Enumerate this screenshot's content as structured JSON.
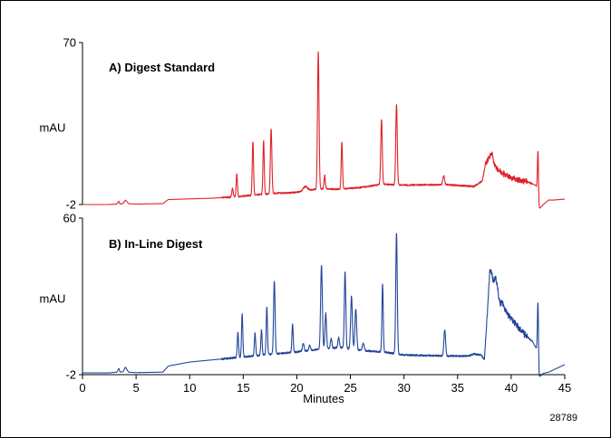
{
  "chart_data": [
    {
      "type": "line",
      "title": "A) Digest Standard",
      "ylabel": "mAU",
      "xlim": [
        0,
        45
      ],
      "ylim": [
        -2,
        70
      ],
      "ytick_labels": [
        "-2",
        "70"
      ],
      "grid": false,
      "line_color": "#e0202a",
      "baseline": {
        "x": [
          0,
          2.5,
          3.2,
          3.4,
          3.5,
          3.8,
          4.0,
          4.3,
          5.0,
          7.5,
          8.0,
          12,
          14,
          16,
          18,
          20,
          22,
          24,
          26,
          28,
          30,
          32,
          34,
          36,
          36.5,
          37.3,
          37.6,
          38.0,
          38.6,
          39.5,
          40.5,
          41.5,
          42.3,
          42.5,
          42.6,
          43.0,
          43.5,
          44.0,
          45.0
        ],
        "y": [
          -2,
          -2,
          -1.8,
          -0.5,
          -1.8,
          -1.5,
          0,
          -1.6,
          -1.8,
          -1.6,
          0.2,
          0.8,
          1.3,
          2.2,
          3.0,
          3.4,
          5.0,
          4.8,
          5.6,
          7.0,
          6.6,
          6.8,
          6.8,
          6.2,
          6.0,
          8.4,
          16.0,
          19.5,
          14.0,
          11.0,
          9.0,
          8.2,
          6.5,
          4.0,
          -4.0,
          -2.0,
          0,
          0,
          0.4
        ]
      },
      "peaks": [
        {
          "x": 14.0,
          "height": 4,
          "width": 0.06
        },
        {
          "x": 14.4,
          "height": 10,
          "width": 0.06
        },
        {
          "x": 15.9,
          "height": 24,
          "width": 0.06
        },
        {
          "x": 16.9,
          "height": 24,
          "width": 0.06
        },
        {
          "x": 17.6,
          "height": 29,
          "width": 0.07
        },
        {
          "x": 20.8,
          "height": 2,
          "width": 0.2
        },
        {
          "x": 22.0,
          "height": 61,
          "width": 0.07
        },
        {
          "x": 22.6,
          "height": 6,
          "width": 0.06
        },
        {
          "x": 24.2,
          "height": 21,
          "width": 0.06
        },
        {
          "x": 27.9,
          "height": 29,
          "width": 0.07
        },
        {
          "x": 29.3,
          "height": 36,
          "width": 0.07
        },
        {
          "x": 33.7,
          "height": 4,
          "width": 0.08
        },
        {
          "x": 38.2,
          "height": 3,
          "width": 0.1
        },
        {
          "x": 42.5,
          "height": 18,
          "width": 0.05
        }
      ]
    },
    {
      "type": "line",
      "title": "B) In-Line Digest",
      "ylabel": "mAU",
      "xlabel": "Minutes",
      "xlim": [
        0,
        45
      ],
      "ylim": [
        -2,
        60
      ],
      "x_ticks": [
        0,
        5,
        10,
        15,
        20,
        25,
        30,
        35,
        40,
        45
      ],
      "ytick_labels": [
        "-2",
        "60"
      ],
      "grid": false,
      "line_color": "#22449a",
      "baseline": {
        "x": [
          0,
          2.5,
          3.2,
          3.4,
          3.5,
          3.8,
          4.0,
          4.3,
          5.0,
          7.5,
          8.0,
          10,
          12,
          14,
          16,
          18,
          20,
          22,
          24,
          26,
          28,
          30,
          32,
          34,
          36,
          36.5,
          37.2,
          37.5,
          38.0,
          38.6,
          39.0,
          40.0,
          41.0,
          42.0,
          42.4,
          42.6,
          43.0,
          43.5,
          44.0,
          45.0
        ],
        "y": [
          -1.3,
          -1.3,
          -1.0,
          0.5,
          -1.0,
          -0.8,
          1.0,
          -1.0,
          -1.2,
          -1.0,
          1.4,
          3.0,
          3.8,
          4.6,
          5.4,
          6.2,
          7.0,
          8.0,
          8.8,
          7.6,
          7.0,
          5.8,
          5.6,
          5.4,
          5.4,
          6.2,
          5.8,
          4.0,
          38.0,
          33.0,
          26.0,
          20.0,
          15.0,
          11.0,
          8.0,
          -3.0,
          -1.5,
          -1.0,
          0,
          2.0
        ]
      },
      "peaks": [
        {
          "x": 14.5,
          "height": 10,
          "width": 0.06
        },
        {
          "x": 14.9,
          "height": 17,
          "width": 0.06
        },
        {
          "x": 16.1,
          "height": 9,
          "width": 0.06
        },
        {
          "x": 16.7,
          "height": 10,
          "width": 0.06
        },
        {
          "x": 17.2,
          "height": 19,
          "width": 0.06
        },
        {
          "x": 17.9,
          "height": 29,
          "width": 0.07
        },
        {
          "x": 19.6,
          "height": 11,
          "width": 0.06
        },
        {
          "x": 20.6,
          "height": 3,
          "width": 0.08
        },
        {
          "x": 21.2,
          "height": 2,
          "width": 0.08
        },
        {
          "x": 22.3,
          "height": 33,
          "width": 0.08
        },
        {
          "x": 22.7,
          "height": 14,
          "width": 0.07
        },
        {
          "x": 23.2,
          "height": 4,
          "width": 0.07
        },
        {
          "x": 23.9,
          "height": 4,
          "width": 0.07
        },
        {
          "x": 24.5,
          "height": 30,
          "width": 0.07
        },
        {
          "x": 25.1,
          "height": 21,
          "width": 0.08
        },
        {
          "x": 25.5,
          "height": 16,
          "width": 0.08
        },
        {
          "x": 26.2,
          "height": 3,
          "width": 0.08
        },
        {
          "x": 28.0,
          "height": 27,
          "width": 0.06
        },
        {
          "x": 29.3,
          "height": 48,
          "width": 0.07
        },
        {
          "x": 33.8,
          "height": 10,
          "width": 0.08
        },
        {
          "x": 38.1,
          "height": 2,
          "width": 0.1
        },
        {
          "x": 38.6,
          "height": 3,
          "width": 0.1
        },
        {
          "x": 39.2,
          "height": 1.5,
          "width": 0.1
        },
        {
          "x": 42.5,
          "height": 24,
          "width": 0.05
        }
      ]
    }
  ],
  "figure_id": "28789"
}
